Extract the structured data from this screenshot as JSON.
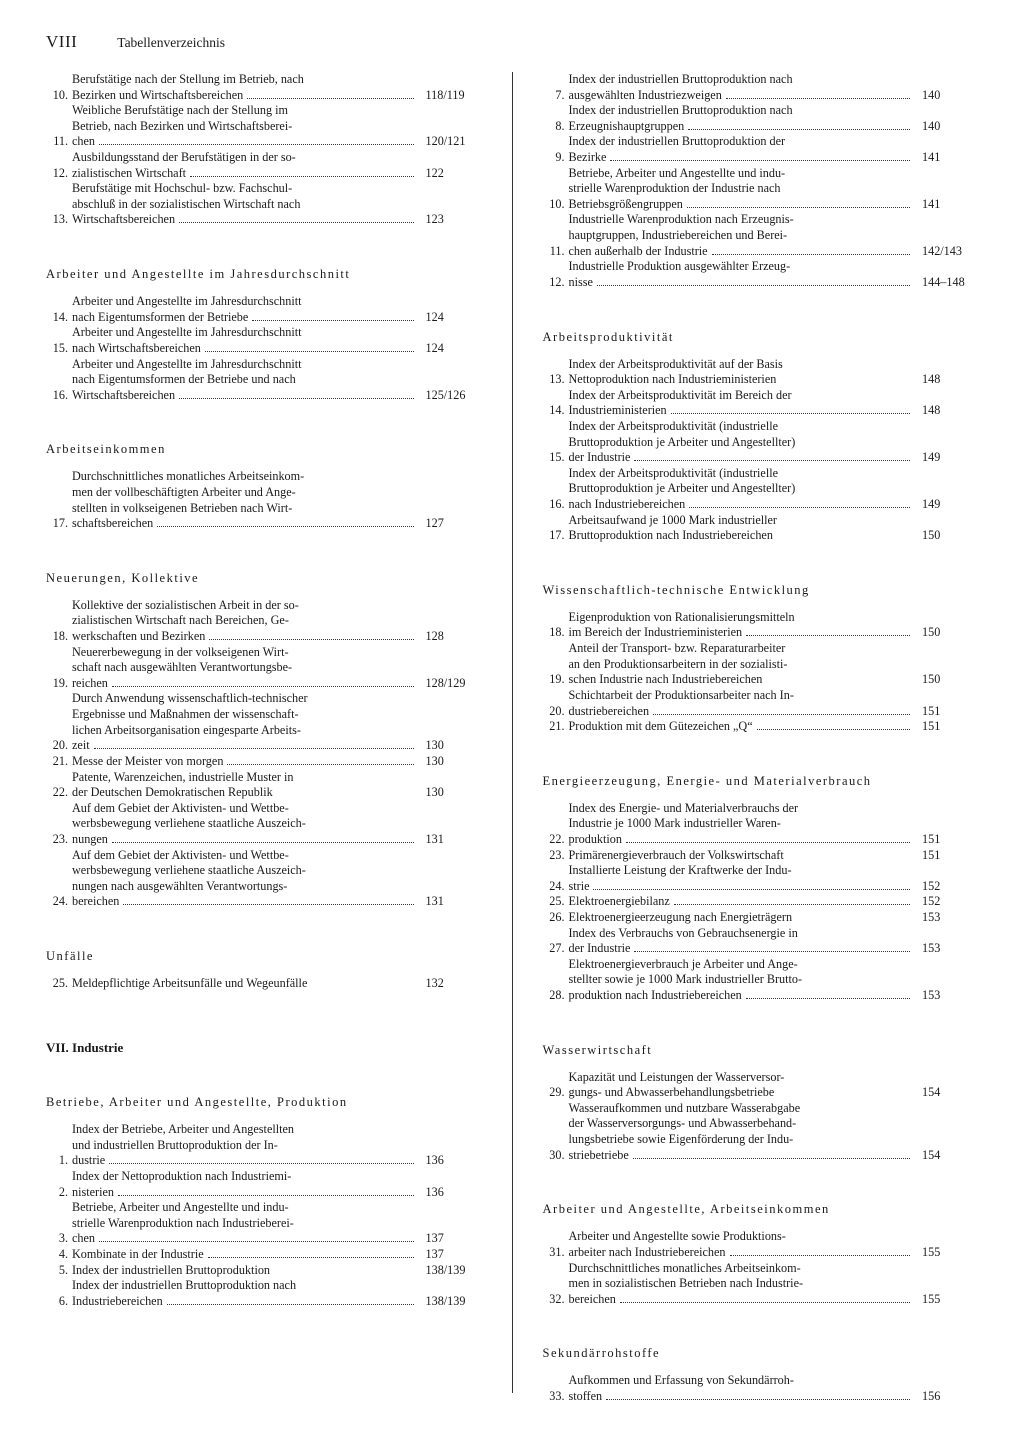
{
  "header": {
    "page_number": "VIII",
    "title": "Tabellenverzeichnis"
  },
  "left_column": [
    {
      "type": "entries",
      "items": [
        {
          "num": "10.",
          "text_lines": [
            "Berufstätige nach der Stellung im Betrieb, nach"
          ],
          "tail": "Bezirken und Wirtschaftsbereichen",
          "page": "118/119"
        },
        {
          "num": "11.",
          "text_lines": [
            "Weibliche Berufstätige nach der Stellung im",
            "Betrieb, nach Bezirken und Wirtschaftsberei-"
          ],
          "tail": "chen",
          "page": "120/121"
        },
        {
          "num": "12.",
          "text_lines": [
            "Ausbildungsstand der Berufstätigen in der so-"
          ],
          "tail": "zialistischen Wirtschaft",
          "page": "122"
        },
        {
          "num": "13.",
          "text_lines": [
            "Berufstätige mit Hochschul- bzw. Fachschul-",
            "abschluß in der sozialistischen Wirtschaft nach"
          ],
          "tail": "Wirtschaftsbereichen",
          "page": "123"
        }
      ]
    },
    {
      "type": "heading",
      "text": "Arbeiter und Angestellte im Jahresdurchschnitt"
    },
    {
      "type": "entries",
      "items": [
        {
          "num": "14.",
          "text_lines": [
            "Arbeiter und Angestellte im Jahresdurchschnitt"
          ],
          "tail": "nach Eigentumsformen der Betriebe",
          "page": "124"
        },
        {
          "num": "15.",
          "text_lines": [
            "Arbeiter und Angestellte im Jahresdurchschnitt"
          ],
          "tail": "nach Wirtschaftsbereichen",
          "page": "124"
        },
        {
          "num": "16.",
          "text_lines": [
            "Arbeiter und Angestellte im Jahresdurchschnitt",
            "nach Eigentumsformen der Betriebe und nach"
          ],
          "tail": "Wirtschaftsbereichen",
          "page": "125/126"
        }
      ]
    },
    {
      "type": "heading",
      "text": "Arbeitseinkommen"
    },
    {
      "type": "entries",
      "items": [
        {
          "num": "17.",
          "text_lines": [
            "Durchschnittliches monatliches Arbeitseinkom-",
            "men der vollbeschäftigten Arbeiter und Ange-",
            "stellten in volkseigenen Betrieben nach Wirt-"
          ],
          "tail": "schaftsbereichen",
          "page": "127"
        }
      ]
    },
    {
      "type": "heading",
      "text": "Neuerungen, Kollektive"
    },
    {
      "type": "entries",
      "items": [
        {
          "num": "18.",
          "text_lines": [
            "Kollektive der sozialistischen Arbeit in der so-",
            "zialistischen Wirtschaft nach Bereichen, Ge-"
          ],
          "tail": "werkschaften und Bezirken",
          "page": "128"
        },
        {
          "num": "19.",
          "text_lines": [
            "Neuererbewegung in der volkseigenen Wirt-",
            "schaft nach ausgewählten Verantwortungsbe-"
          ],
          "tail": "reichen",
          "page": "128/129"
        },
        {
          "num": "20.",
          "text_lines": [
            "Durch Anwendung wissenschaftlich-technischer",
            "Ergebnisse und Maßnahmen der wissenschaft-",
            "lichen Arbeitsorganisation eingesparte Arbeits-"
          ],
          "tail": "zeit",
          "page": "130"
        },
        {
          "num": "21.",
          "text_lines": [],
          "tail": "Messe der Meister von morgen",
          "page": "130"
        },
        {
          "num": "22.",
          "text_lines": [
            "Patente, Warenzeichen, industrielle Muster in"
          ],
          "tail": "der Deutschen Demokratischen Republik",
          "page": "130",
          "no_dots": true
        },
        {
          "num": "23.",
          "text_lines": [
            "Auf dem Gebiet der Aktivisten- und Wettbe-",
            "werbsbewegung verliehene staatliche Auszeich-"
          ],
          "tail": "nungen",
          "page": "131"
        },
        {
          "num": "24.",
          "text_lines": [
            "Auf dem Gebiet der Aktivisten- und Wettbe-",
            "werbsbewegung verliehene staatliche Auszeich-",
            "nungen nach ausgewählten Verantwortungs-"
          ],
          "tail": "bereichen",
          "page": "131"
        }
      ]
    },
    {
      "type": "heading",
      "text": "Unfälle"
    },
    {
      "type": "entries",
      "items": [
        {
          "num": "25.",
          "text_lines": [],
          "tail": "Meldepflichtige Arbeitsunfälle und Wegeunfälle",
          "page": "132",
          "no_dots": true
        }
      ]
    },
    {
      "type": "chapter",
      "text": "VII. Industrie"
    },
    {
      "type": "heading",
      "text": "Betriebe, Arbeiter und Angestellte, Produktion"
    },
    {
      "type": "entries",
      "items": [
        {
          "num": "1.",
          "text_lines": [
            "Index der Betriebe, Arbeiter und Angestellten",
            "und industriellen Bruttoproduktion der In-"
          ],
          "tail": "dustrie",
          "page": "136"
        },
        {
          "num": "2.",
          "text_lines": [
            "Index der Nettoproduktion nach Industriemi-"
          ],
          "tail": "nisterien",
          "page": "136"
        },
        {
          "num": "3.",
          "text_lines": [
            "Betriebe, Arbeiter und Angestellte und indu-",
            "strielle Warenproduktion nach Industrieberei-"
          ],
          "tail": "chen",
          "page": "137"
        },
        {
          "num": "4.",
          "text_lines": [],
          "tail": "Kombinate in der Industrie",
          "page": "137"
        },
        {
          "num": "5.",
          "text_lines": [],
          "tail": "Index der industriellen Bruttoproduktion",
          "page": "138/139",
          "no_dots": true
        },
        {
          "num": "6.",
          "text_lines": [
            "Index der industriellen Bruttoproduktion nach"
          ],
          "tail": "Industriebereichen",
          "page": "138/139"
        }
      ]
    }
  ],
  "right_column": [
    {
      "type": "entries",
      "items": [
        {
          "num": "7.",
          "text_lines": [
            "Index der industriellen Bruttoproduktion nach"
          ],
          "tail": "ausgewählten Industriezweigen",
          "page": "140"
        },
        {
          "num": "8.",
          "text_lines": [
            "Index der industriellen Bruttoproduktion nach"
          ],
          "tail": "Erzeugnishauptgruppen",
          "page": "140"
        },
        {
          "num": "9.",
          "text_lines": [
            "Index der industriellen Bruttoproduktion der"
          ],
          "tail": "Bezirke",
          "page": "141"
        },
        {
          "num": "10.",
          "text_lines": [
            "Betriebe, Arbeiter und Angestellte und indu-",
            "strielle Warenproduktion der Industrie nach"
          ],
          "tail": "Betriebsgrößengruppen",
          "page": "141"
        },
        {
          "num": "11.",
          "text_lines": [
            "Industrielle Warenproduktion nach Erzeugnis-",
            "hauptgruppen, Industriebereichen und Berei-"
          ],
          "tail": "chen außerhalb der Industrie",
          "page": "142/143"
        },
        {
          "num": "12.",
          "text_lines": [
            "Industrielle Produktion ausgewählter Erzeug-"
          ],
          "tail": "nisse",
          "page": "144–148"
        }
      ]
    },
    {
      "type": "heading",
      "text": "Arbeitsproduktivität"
    },
    {
      "type": "entries",
      "items": [
        {
          "num": "13.",
          "text_lines": [
            "Index der Arbeitsproduktivität auf der Basis"
          ],
          "tail": "Nettoproduktion nach Industrieministerien",
          "page": "148",
          "no_dots": true
        },
        {
          "num": "14.",
          "text_lines": [
            "Index der Arbeitsproduktivität im Bereich der"
          ],
          "tail": "Industrieministerien",
          "page": "148"
        },
        {
          "num": "15.",
          "text_lines": [
            "Index der Arbeitsproduktivität (industrielle",
            "Bruttoproduktion je Arbeiter und Angestellter)"
          ],
          "tail": "der Industrie",
          "page": "149"
        },
        {
          "num": "16.",
          "text_lines": [
            "Index der Arbeitsproduktivität (industrielle",
            "Bruttoproduktion je Arbeiter und Angestellter)"
          ],
          "tail": "nach Industriebereichen",
          "page": "149"
        },
        {
          "num": "17.",
          "text_lines": [
            "Arbeitsaufwand je 1000 Mark industrieller"
          ],
          "tail": "Bruttoproduktion nach Industriebereichen",
          "page": "150",
          "no_dots": true
        }
      ]
    },
    {
      "type": "heading",
      "text": "Wissenschaftlich-technische Entwicklung"
    },
    {
      "type": "entries",
      "items": [
        {
          "num": "18.",
          "text_lines": [
            "Eigenproduktion von Rationalisierungsmitteln"
          ],
          "tail": "im Bereich der Industrieministerien",
          "page": "150"
        },
        {
          "num": "19.",
          "text_lines": [
            "Anteil der Transport- bzw. Reparaturarbeiter",
            "an den Produktionsarbeitern in der sozialisti-"
          ],
          "tail": "schen Industrie nach Industriebereichen",
          "page": "150",
          "no_dots": true
        },
        {
          "num": "20.",
          "text_lines": [
            "Schichtarbeit der Produktionsarbeiter nach In-"
          ],
          "tail": "dustriebereichen",
          "page": "151"
        },
        {
          "num": "21.",
          "text_lines": [],
          "tail": "Produktion mit dem Gütezeichen „Q“",
          "page": "151"
        }
      ]
    },
    {
      "type": "heading",
      "text": "Energieerzeugung, Energie- und Materialverbrauch"
    },
    {
      "type": "entries",
      "items": [
        {
          "num": "22.",
          "text_lines": [
            "Index des Energie- und Materialverbrauchs der",
            "Industrie je 1000 Mark industrieller Waren-"
          ],
          "tail": "produktion",
          "page": "151"
        },
        {
          "num": "23.",
          "text_lines": [],
          "tail": "Primärenergieverbrauch der Volkswirtschaft",
          "page": "151",
          "no_dots": true
        },
        {
          "num": "24.",
          "text_lines": [
            "Installierte Leistung der Kraftwerke der Indu-"
          ],
          "tail": "strie",
          "page": "152"
        },
        {
          "num": "25.",
          "text_lines": [],
          "tail": "Elektroenergiebilanz",
          "page": "152"
        },
        {
          "num": "26.",
          "text_lines": [],
          "tail": "Elektroenergieerzeugung nach Energieträgern",
          "page": "153",
          "no_dots": true
        },
        {
          "num": "27.",
          "text_lines": [
            "Index des Verbrauchs von Gebrauchsenergie in"
          ],
          "tail": "der Industrie",
          "page": "153"
        },
        {
          "num": "28.",
          "text_lines": [
            "Elektroenergieverbrauch je Arbeiter und Ange-",
            "stellter sowie je 1000 Mark industrieller Brutto-"
          ],
          "tail": "produktion nach Industriebereichen",
          "page": "153"
        }
      ]
    },
    {
      "type": "heading",
      "text": "Wasserwirtschaft"
    },
    {
      "type": "entries",
      "items": [
        {
          "num": "29.",
          "text_lines": [
            "Kapazität und Leistungen der Wasserversor-"
          ],
          "tail": "gungs- und Abwasserbehandlungsbetriebe",
          "page": "154",
          "no_dots": true
        },
        {
          "num": "30.",
          "text_lines": [
            "Wasseraufkommen und nutzbare Wasserabgabe",
            "der Wasserversorgungs- und Abwasserbehand-",
            "lungsbetriebe sowie Eigenförderung der Indu-"
          ],
          "tail": "striebetriebe",
          "page": "154"
        }
      ]
    },
    {
      "type": "heading",
      "text": "Arbeiter und Angestellte, Arbeitseinkommen"
    },
    {
      "type": "entries",
      "items": [
        {
          "num": "31.",
          "text_lines": [
            "Arbeiter und Angestellte sowie Produktions-"
          ],
          "tail": "arbeiter nach Industriebereichen",
          "page": "155"
        },
        {
          "num": "32.",
          "text_lines": [
            "Durchschnittliches monatliches Arbeitseinkom-",
            "men in sozialistischen Betrieben nach Industrie-"
          ],
          "tail": "bereichen",
          "page": "155"
        }
      ]
    },
    {
      "type": "heading",
      "text": "Sekundärrohstoffe"
    },
    {
      "type": "entries",
      "items": [
        {
          "num": "33.",
          "text_lines": [
            "Aufkommen und Erfassung von Sekundärroh-"
          ],
          "tail": "stoffen",
          "page": "156"
        }
      ]
    }
  ]
}
